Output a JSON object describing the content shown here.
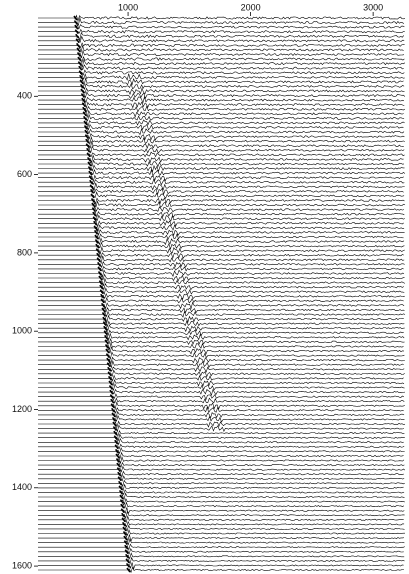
{
  "chart_data": {
    "type": "seismic",
    "xlim": [
      265,
      3260
    ],
    "xticks": [
      1000,
      2000,
      3000
    ],
    "ylim": [
      200,
      1610
    ],
    "yticks": [
      400,
      600,
      800,
      1000,
      1200,
      1400,
      1600
    ],
    "y_reversed": true,
    "x_axis_position": "top"
  }
}
